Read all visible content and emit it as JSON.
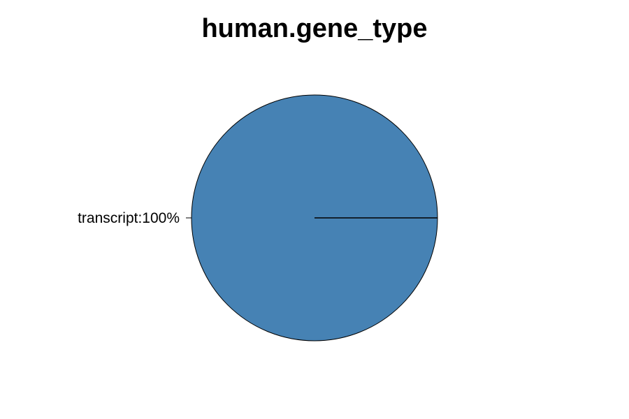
{
  "chart_data": {
    "type": "pie",
    "title": "human.gene_type",
    "slices": [
      {
        "label": "transcript",
        "value": 100,
        "display_label": "transcript:100%",
        "color": "#4682b4"
      }
    ],
    "start_angle_degrees": 0,
    "direction": "counterclockwise",
    "border_color": "#000000",
    "label_placement": "outside-left"
  }
}
